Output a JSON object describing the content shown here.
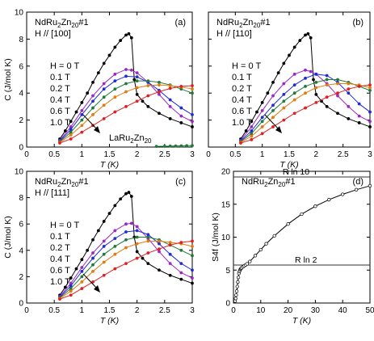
{
  "chart_data": [
    {
      "type": "line",
      "panel": "(a)",
      "sample": "NdRu",
      "sample_sub1": "2",
      "sample_mid": "Zn",
      "sample_sub2": "20",
      "sample_tail": "#1",
      "field_dir": "H // [100]",
      "xlabel": "T (K)",
      "ylabel": "C (J/mol K)",
      "xlim": [
        0,
        3
      ],
      "ylim": [
        0,
        10
      ],
      "xticks": [
        "0",
        "0.5",
        "1",
        "1.5",
        "2",
        "2.5",
        "3"
      ],
      "yticks": [
        "0",
        "2",
        "4",
        "6",
        "8",
        "10"
      ],
      "legend_title": "H = 0 T",
      "extra_label": {
        "main": "LaRu",
        "sub1": "2",
        "mid": "Zn",
        "sub2": "20"
      },
      "series": [
        {
          "name": "H = 0 T",
          "color": "#000000",
          "x": [
            0.6,
            0.7,
            0.8,
            0.9,
            1.0,
            1.1,
            1.2,
            1.3,
            1.4,
            1.5,
            1.6,
            1.7,
            1.8,
            1.85,
            1.9,
            1.95,
            2.0,
            2.1,
            2.2,
            2.4,
            2.6,
            2.8,
            3.0
          ],
          "y": [
            0.6,
            1.2,
            1.9,
            2.6,
            3.3,
            4.0,
            4.8,
            5.5,
            6.2,
            6.8,
            7.4,
            7.9,
            8.3,
            8.4,
            8.1,
            5.0,
            3.9,
            3.4,
            3.0,
            2.5,
            2.1,
            1.8,
            1.5
          ]
        },
        {
          "name": "0.1 T",
          "color": "#9c27c4",
          "x": [
            0.6,
            0.8,
            1.0,
            1.2,
            1.4,
            1.6,
            1.8,
            1.9,
            2.0,
            2.2,
            2.4,
            2.6,
            2.8,
            3.0
          ],
          "y": [
            0.5,
            1.5,
            2.7,
            3.8,
            4.7,
            5.4,
            5.75,
            5.7,
            5.5,
            4.8,
            3.9,
            3.0,
            2.3,
            1.9
          ]
        },
        {
          "name": "0.2 T",
          "color": "#1e2bd6",
          "x": [
            0.6,
            0.8,
            1.0,
            1.2,
            1.4,
            1.6,
            1.8,
            2.0,
            2.2,
            2.4,
            2.6,
            2.8,
            3.0
          ],
          "y": [
            0.45,
            1.3,
            2.4,
            3.4,
            4.3,
            4.9,
            5.25,
            5.2,
            4.8,
            4.2,
            3.5,
            2.9,
            2.4
          ]
        },
        {
          "name": "0.4 T",
          "color": "#1f7a3a",
          "x": [
            0.6,
            0.8,
            1.0,
            1.2,
            1.4,
            1.6,
            1.8,
            2.0,
            2.2,
            2.4,
            2.6,
            2.8,
            3.0
          ],
          "y": [
            0.4,
            1.1,
            2.0,
            2.9,
            3.7,
            4.3,
            4.7,
            4.9,
            4.9,
            4.8,
            4.6,
            4.3,
            4.0
          ]
        },
        {
          "name": "0.6 T",
          "color": "#e07b10",
          "x": [
            0.6,
            0.8,
            1.0,
            1.2,
            1.4,
            1.6,
            1.8,
            2.0,
            2.2,
            2.4,
            2.6,
            2.8,
            3.0
          ],
          "y": [
            0.35,
            0.9,
            1.6,
            2.4,
            3.1,
            3.7,
            4.1,
            4.4,
            4.55,
            4.6,
            4.55,
            4.45,
            4.3
          ]
        },
        {
          "name": "1.0 T",
          "color": "#e02020",
          "x": [
            0.6,
            0.8,
            1.0,
            1.2,
            1.4,
            1.6,
            1.8,
            2.0,
            2.2,
            2.4,
            2.6,
            2.8,
            3.0
          ],
          "y": [
            0.3,
            0.6,
            1.1,
            1.6,
            2.1,
            2.6,
            3.0,
            3.4,
            3.8,
            4.1,
            4.35,
            4.5,
            4.55
          ]
        },
        {
          "name": "LaRu2Zn20",
          "color": "#1f7a3a",
          "x": [
            2.35,
            2.5,
            2.6,
            2.7,
            2.8,
            2.9,
            3.0
          ],
          "y": [
            0.05,
            0.06,
            0.07,
            0.08,
            0.09,
            0.1,
            0.11
          ]
        }
      ]
    },
    {
      "type": "line",
      "panel": "(b)",
      "sample": "NdRu",
      "sample_sub1": "2",
      "sample_mid": "Zn",
      "sample_sub2": "20",
      "sample_tail": "#1",
      "field_dir": "H // [110]",
      "xlabel": "T (K)",
      "ylabel": "",
      "xlim": [
        0,
        3
      ],
      "ylim": [
        0,
        10
      ],
      "xticks": [
        "0",
        "0.5",
        "1",
        "1.5",
        "2",
        "2.5",
        "3"
      ],
      "yticks": [],
      "legend_title": "H = 0 T",
      "series": [
        {
          "name": "H = 0 T",
          "color": "#000000",
          "x": [
            0.6,
            0.7,
            0.8,
            0.9,
            1.0,
            1.1,
            1.2,
            1.3,
            1.4,
            1.5,
            1.6,
            1.7,
            1.8,
            1.85,
            1.9,
            1.95,
            2.0,
            2.1,
            2.2,
            2.4,
            2.6,
            2.8,
            3.0
          ],
          "y": [
            0.6,
            1.2,
            1.9,
            2.6,
            3.3,
            4.0,
            4.8,
            5.5,
            6.2,
            6.8,
            7.4,
            7.9,
            8.3,
            8.4,
            8.1,
            5.0,
            3.9,
            3.4,
            3.0,
            2.5,
            2.1,
            1.8,
            1.5
          ]
        },
        {
          "name": "0.1 T",
          "color": "#9c27c4",
          "x": [
            0.6,
            0.8,
            1.0,
            1.2,
            1.4,
            1.6,
            1.8,
            1.9,
            2.0,
            2.2,
            2.4,
            2.6,
            2.8,
            3.0
          ],
          "y": [
            0.5,
            1.5,
            2.7,
            3.8,
            4.7,
            5.4,
            5.7,
            5.6,
            5.4,
            4.7,
            3.8,
            3.0,
            2.3,
            1.9
          ]
        },
        {
          "name": "0.2 T",
          "color": "#1e2bd6",
          "x": [
            0.6,
            0.8,
            1.0,
            1.2,
            1.4,
            1.6,
            1.8,
            2.0,
            2.2,
            2.4,
            2.6,
            2.8,
            3.0
          ],
          "y": [
            0.45,
            1.2,
            2.2,
            3.1,
            3.9,
            4.6,
            5.1,
            5.4,
            5.3,
            4.8,
            4.0,
            3.2,
            2.6
          ]
        },
        {
          "name": "0.4 T",
          "color": "#1f7a3a",
          "x": [
            0.6,
            0.8,
            1.0,
            1.2,
            1.4,
            1.6,
            1.8,
            2.0,
            2.2,
            2.4,
            2.6,
            2.8,
            3.0
          ],
          "y": [
            0.4,
            1.0,
            1.9,
            2.7,
            3.4,
            4.0,
            4.5,
            4.8,
            5.0,
            5.0,
            4.8,
            4.5,
            4.2
          ]
        },
        {
          "name": "0.6 T",
          "color": "#e07b10",
          "x": [
            0.6,
            0.8,
            1.0,
            1.2,
            1.4,
            1.6,
            1.8,
            2.0,
            2.2,
            2.4,
            2.6,
            2.8,
            3.0
          ],
          "y": [
            0.35,
            0.8,
            1.5,
            2.2,
            2.9,
            3.5,
            4.0,
            4.4,
            4.6,
            4.7,
            4.7,
            4.6,
            4.4
          ]
        },
        {
          "name": "1.0 T",
          "color": "#e02020",
          "x": [
            0.6,
            0.8,
            1.0,
            1.2,
            1.4,
            1.6,
            1.8,
            2.0,
            2.2,
            2.4,
            2.6,
            2.8,
            3.0
          ],
          "y": [
            0.3,
            0.55,
            1.0,
            1.5,
            2.0,
            2.5,
            2.9,
            3.3,
            3.7,
            4.0,
            4.3,
            4.5,
            4.6
          ]
        }
      ]
    },
    {
      "type": "line",
      "panel": "(c)",
      "sample": "NdRu",
      "sample_sub1": "2",
      "sample_mid": "Zn",
      "sample_sub2": "20",
      "sample_tail": "#1",
      "field_dir": "H // [111]",
      "xlabel": "T (K)",
      "ylabel": "C (J/mol K)",
      "xlim": [
        0,
        3
      ],
      "ylim": [
        0,
        10
      ],
      "xticks": [
        "0",
        "0.5",
        "1",
        "1.5",
        "2",
        "2.5",
        "3"
      ],
      "yticks": [
        "0",
        "2",
        "4",
        "6",
        "8",
        "10"
      ],
      "legend_title": "H = 0 T",
      "series": [
        {
          "name": "H = 0 T",
          "color": "#000000",
          "x": [
            0.6,
            0.7,
            0.8,
            0.9,
            1.0,
            1.1,
            1.2,
            1.3,
            1.4,
            1.5,
            1.6,
            1.7,
            1.8,
            1.85,
            1.9,
            1.95,
            2.0,
            2.1,
            2.2,
            2.4,
            2.6,
            2.8,
            3.0
          ],
          "y": [
            0.6,
            1.2,
            1.9,
            2.6,
            3.3,
            4.0,
            4.8,
            5.5,
            6.2,
            6.8,
            7.4,
            7.9,
            8.3,
            8.4,
            8.1,
            5.0,
            3.9,
            3.4,
            3.0,
            2.5,
            2.1,
            1.8,
            1.5
          ]
        },
        {
          "name": "0.1 T",
          "color": "#9c27c4",
          "x": [
            0.6,
            0.8,
            1.0,
            1.2,
            1.4,
            1.6,
            1.8,
            1.9,
            2.0,
            2.2,
            2.4,
            2.6,
            2.8,
            3.0
          ],
          "y": [
            0.5,
            1.5,
            2.7,
            3.8,
            4.7,
            5.5,
            6.0,
            6.05,
            5.8,
            4.9,
            3.9,
            3.0,
            2.3,
            1.9
          ]
        },
        {
          "name": "0.2 T",
          "color": "#1e2bd6",
          "x": [
            0.6,
            0.8,
            1.0,
            1.2,
            1.4,
            1.6,
            1.8,
            2.0,
            2.2,
            2.4,
            2.6,
            2.8,
            3.0
          ],
          "y": [
            0.45,
            1.3,
            2.4,
            3.4,
            4.3,
            4.9,
            5.4,
            5.5,
            5.2,
            4.5,
            3.7,
            3.0,
            2.5
          ]
        },
        {
          "name": "0.4 T",
          "color": "#1f7a3a",
          "x": [
            0.6,
            0.8,
            1.0,
            1.2,
            1.4,
            1.6,
            1.8,
            2.0,
            2.2,
            2.4,
            2.6,
            2.8,
            3.0
          ],
          "y": [
            0.4,
            1.1,
            2.0,
            2.9,
            3.7,
            4.3,
            4.8,
            5.0,
            5.0,
            4.8,
            4.4,
            4.0,
            3.6
          ]
        },
        {
          "name": "0.6 T",
          "color": "#e07b10",
          "x": [
            0.6,
            0.8,
            1.0,
            1.2,
            1.4,
            1.6,
            1.8,
            2.0,
            2.2,
            2.4,
            2.6,
            2.8,
            3.0
          ],
          "y": [
            0.35,
            0.9,
            1.6,
            2.4,
            3.1,
            3.7,
            4.2,
            4.5,
            4.7,
            4.7,
            4.6,
            4.5,
            4.3
          ]
        },
        {
          "name": "1.0 T",
          "color": "#e02020",
          "x": [
            0.6,
            0.8,
            1.0,
            1.2,
            1.4,
            1.6,
            1.8,
            2.0,
            2.2,
            2.4,
            2.6,
            2.8,
            3.0
          ],
          "y": [
            0.3,
            0.6,
            1.1,
            1.6,
            2.1,
            2.6,
            3.0,
            3.4,
            3.8,
            4.1,
            4.4,
            4.6,
            4.7
          ]
        }
      ]
    },
    {
      "type": "line",
      "panel": "(d)",
      "sample": "NdRu",
      "sample_sub1": "2",
      "sample_mid": "Zn",
      "sample_sub2": "20",
      "sample_tail": "#1",
      "xlabel": "T (K)",
      "ylabel": "S4f (J/mol K)",
      "xlim": [
        0,
        50
      ],
      "ylim": [
        0,
        20
      ],
      "xticks": [
        "0",
        "10",
        "20",
        "30",
        "40",
        "50"
      ],
      "yticks": [
        "0",
        "5",
        "10",
        "15",
        "20"
      ],
      "reference_lines": [
        {
          "label": "R ln 10",
          "value": 19.14
        },
        {
          "label": "R ln 2",
          "value": 5.76
        }
      ],
      "series": [
        {
          "name": "S4f",
          "color": "#000000",
          "x": [
            0.6,
            0.8,
            1.0,
            1.2,
            1.4,
            1.6,
            1.8,
            2.0,
            2.2,
            2.4,
            2.6,
            2.8,
            3.0,
            3.5,
            4.0,
            4.5,
            5.0,
            6.0,
            8.0,
            10.0,
            12.0,
            15.0,
            20.0,
            25.0,
            30.0,
            35.0,
            40.0,
            45.0,
            50.0
          ],
          "y": [
            0.3,
            0.7,
            1.2,
            1.8,
            2.5,
            3.2,
            3.9,
            4.5,
            4.8,
            5.0,
            5.15,
            5.25,
            5.35,
            5.5,
            5.65,
            5.8,
            5.95,
            6.3,
            7.2,
            8.1,
            9.0,
            10.2,
            12.0,
            13.5,
            14.7,
            15.7,
            16.5,
            17.2,
            17.8
          ]
        }
      ]
    }
  ],
  "panels": [
    {
      "h_label": "H = 0 T",
      "field_labels": [
        "0.1 T",
        "0.2 T",
        "0.4 T",
        "0.6 T",
        "1.0 T"
      ]
    },
    {
      "h_label": "H = 0 T",
      "field_labels": [
        "0.1 T",
        "0.2 T",
        "0.4 T",
        "0.6 T",
        "1.0 T"
      ]
    },
    {
      "h_label": "H = 0 T",
      "field_labels": [
        "0.1 T",
        "0.2 T",
        "0.4 T",
        "0.6 T",
        "1.0 T"
      ]
    }
  ]
}
